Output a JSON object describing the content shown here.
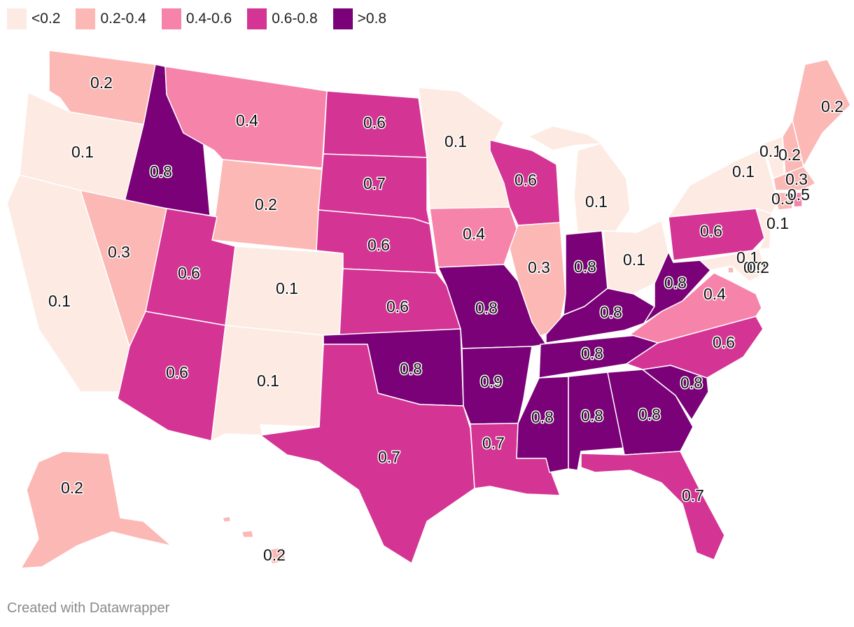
{
  "legend": [
    {
      "label": "<0.2",
      "color": "#fdebe3"
    },
    {
      "label": "0.2-0.4",
      "color": "#fbb8b5"
    },
    {
      "label": "0.4-0.6",
      "color": "#f683a9"
    },
    {
      "label": "0.6-0.8",
      "color": "#d43494"
    },
    {
      "label": ">0.8",
      "color": "#7a0177"
    }
  ],
  "states": [
    {
      "id": "WA",
      "value": "0.2",
      "bin": 1
    },
    {
      "id": "OR",
      "value": "0.1",
      "bin": 0
    },
    {
      "id": "CA",
      "value": "0.1",
      "bin": 0
    },
    {
      "id": "ID",
      "value": "0.8",
      "bin": 4
    },
    {
      "id": "NV",
      "value": "0.3",
      "bin": 1
    },
    {
      "id": "MT",
      "value": "0.4",
      "bin": 2
    },
    {
      "id": "WY",
      "value": "0.2",
      "bin": 1
    },
    {
      "id": "UT",
      "value": "0.6",
      "bin": 3
    },
    {
      "id": "AZ",
      "value": "0.6",
      "bin": 3
    },
    {
      "id": "CO",
      "value": "0.1",
      "bin": 0
    },
    {
      "id": "NM",
      "value": "0.1",
      "bin": 0
    },
    {
      "id": "ND",
      "value": "0.6",
      "bin": 3
    },
    {
      "id": "SD",
      "value": "0.7",
      "bin": 3
    },
    {
      "id": "NE",
      "value": "0.6",
      "bin": 3
    },
    {
      "id": "KS",
      "value": "0.6",
      "bin": 3
    },
    {
      "id": "OK",
      "value": "0.8",
      "bin": 4
    },
    {
      "id": "TX",
      "value": "0.7",
      "bin": 3
    },
    {
      "id": "MN",
      "value": "0.1",
      "bin": 0
    },
    {
      "id": "IA",
      "value": "0.4",
      "bin": 2
    },
    {
      "id": "MO",
      "value": "0.8",
      "bin": 4
    },
    {
      "id": "AR",
      "value": "0.9",
      "bin": 4
    },
    {
      "id": "LA",
      "value": "0.7",
      "bin": 3
    },
    {
      "id": "WI",
      "value": "0.6",
      "bin": 3
    },
    {
      "id": "IL",
      "value": "0.3",
      "bin": 1
    },
    {
      "id": "MI",
      "value": "0.1",
      "bin": 0
    },
    {
      "id": "IN",
      "value": "0.8",
      "bin": 4
    },
    {
      "id": "OH",
      "value": "0.1",
      "bin": 0
    },
    {
      "id": "KY",
      "value": "0.8",
      "bin": 4
    },
    {
      "id": "TN",
      "value": "0.8",
      "bin": 4
    },
    {
      "id": "MS",
      "value": "0.8",
      "bin": 4
    },
    {
      "id": "AL",
      "value": "0.8",
      "bin": 4
    },
    {
      "id": "GA",
      "value": "0.8",
      "bin": 4
    },
    {
      "id": "FL",
      "value": "0.7",
      "bin": 3
    },
    {
      "id": "SC",
      "value": "0.8",
      "bin": 4
    },
    {
      "id": "NC",
      "value": "0.6",
      "bin": 3
    },
    {
      "id": "VA",
      "value": "0.4",
      "bin": 2
    },
    {
      "id": "WV",
      "value": "0.8",
      "bin": 4
    },
    {
      "id": "PA",
      "value": "0.6",
      "bin": 3
    },
    {
      "id": "NY",
      "value": "0.1",
      "bin": 0
    },
    {
      "id": "NJ",
      "value": "0.1",
      "bin": 0
    },
    {
      "id": "DE",
      "value": "0.1",
      "bin": 0
    },
    {
      "id": "MD",
      "value": "0.0",
      "bin": 0
    },
    {
      "id": "DC",
      "value": "0.2",
      "bin": 1
    },
    {
      "id": "VT",
      "value": "0.1",
      "bin": 0
    },
    {
      "id": "NH",
      "value": "0.2",
      "bin": 1
    },
    {
      "id": "ME",
      "value": "0.2",
      "bin": 1
    },
    {
      "id": "MA",
      "value": "0.3",
      "bin": 1
    },
    {
      "id": "CT",
      "value": "0.3",
      "bin": 1
    },
    {
      "id": "RI",
      "value": "0.5",
      "bin": 2
    },
    {
      "id": "AK",
      "value": "0.2",
      "bin": 1
    },
    {
      "id": "HI",
      "value": "0.2",
      "bin": 1
    }
  ],
  "credit": "Created with Datawrapper"
}
